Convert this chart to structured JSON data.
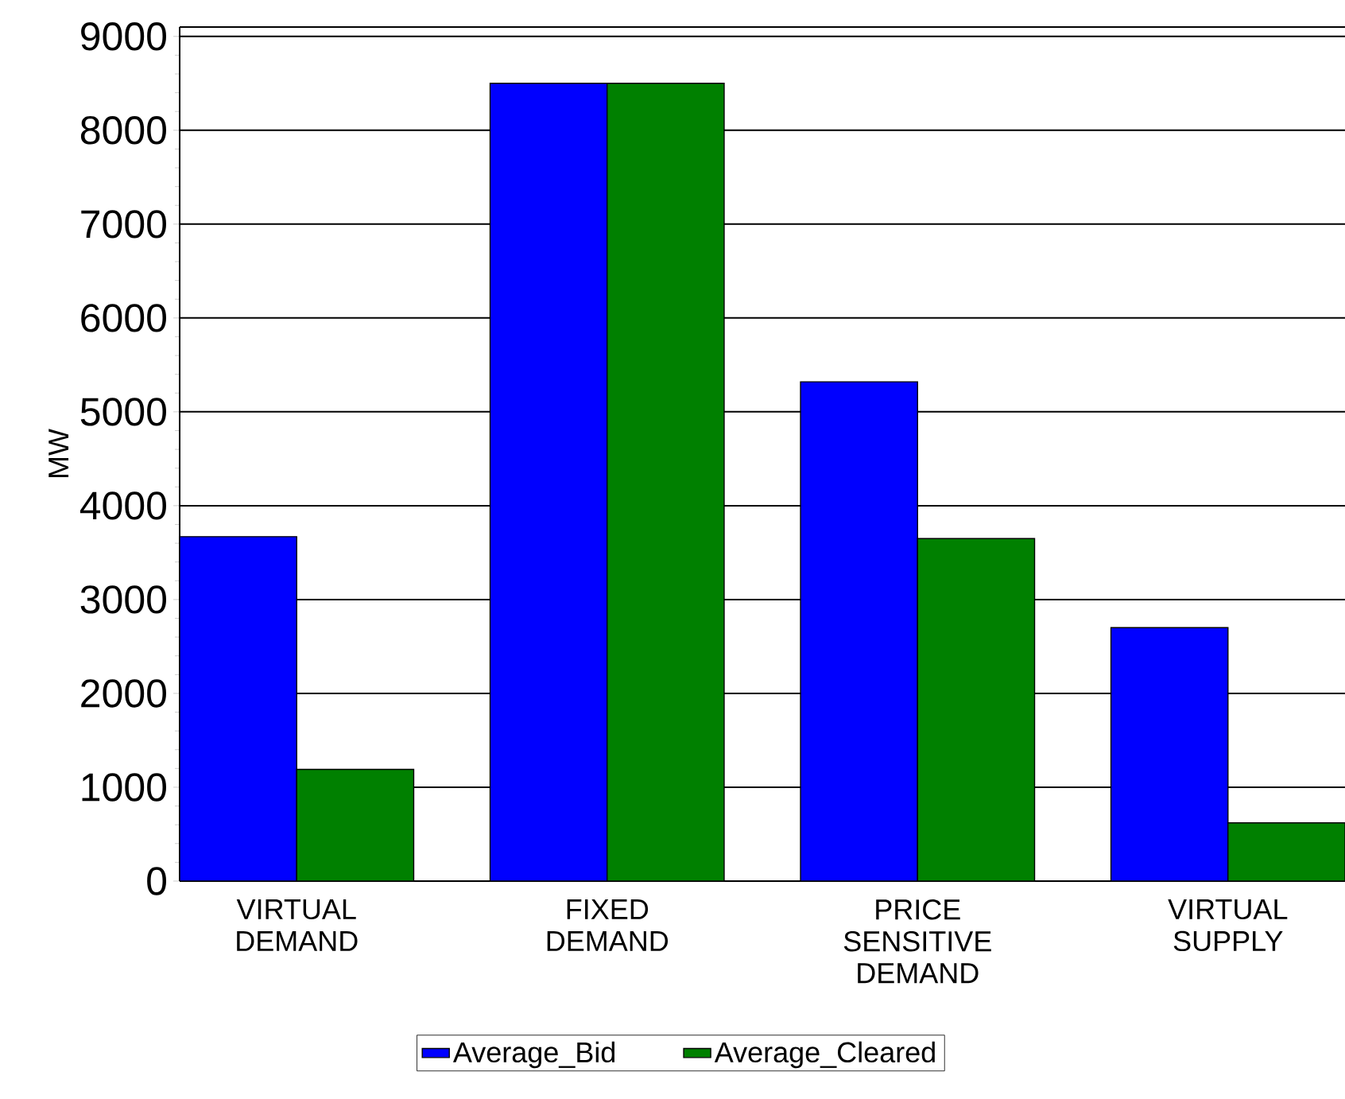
{
  "chart_data": {
    "type": "bar",
    "ylabel": "MW",
    "categories": [
      "VIRTUAL DEMAND",
      "FIXED DEMAND",
      "PRICE SENSITIVE DEMAND",
      "VIRTUAL SUPPLY"
    ],
    "series": [
      {
        "name": "Average_Bid",
        "color": "#0000ff",
        "values": [
          3670,
          8500,
          5320,
          2700
        ]
      },
      {
        "name": "Average_Cleared",
        "color": "#008000",
        "values": [
          1190,
          8500,
          3650,
          620
        ]
      }
    ],
    "ylim": [
      0,
      9100
    ],
    "yticks": [
      0,
      1000,
      2000,
      3000,
      4000,
      5000,
      6000,
      7000,
      8000,
      9000
    ],
    "grid": "y",
    "legend": "bottom"
  }
}
